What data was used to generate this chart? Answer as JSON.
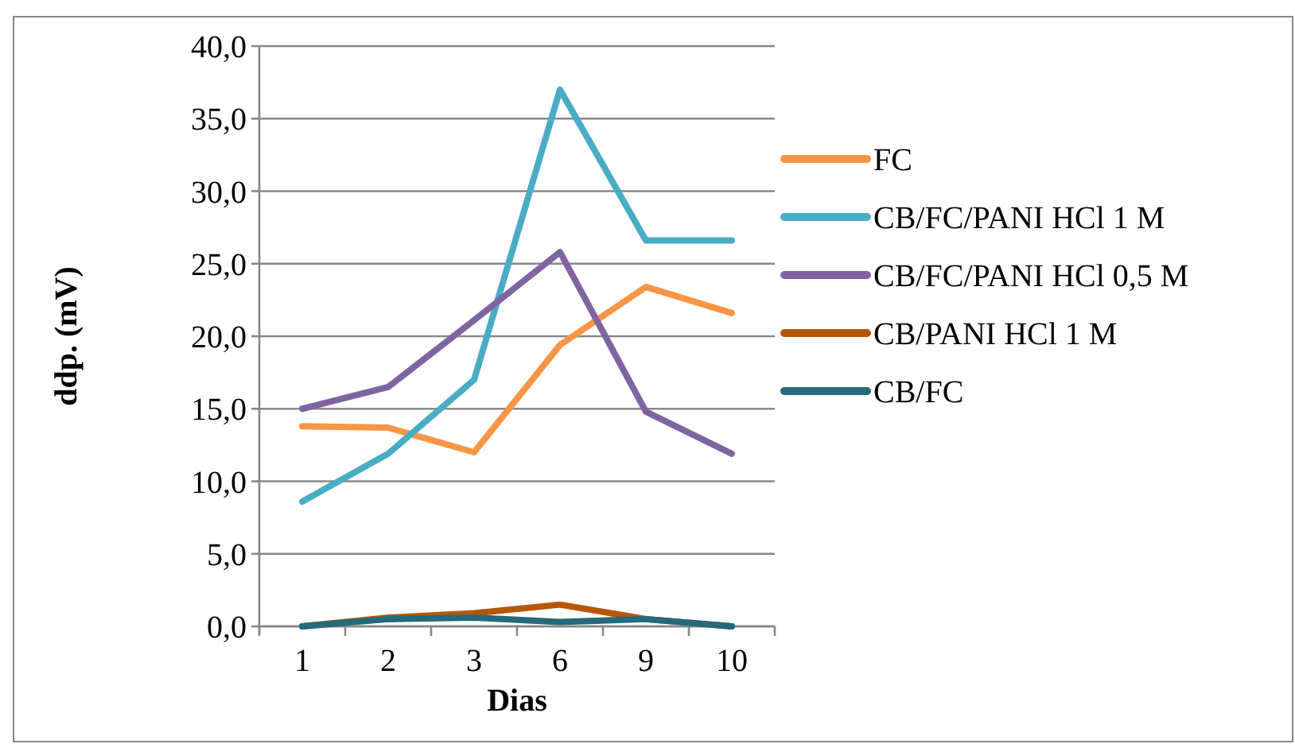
{
  "chart_data": {
    "type": "line",
    "xlabel": "Dias",
    "ylabel": "ddp. (mV)",
    "categories": [
      "1",
      "2",
      "3",
      "6",
      "9",
      "10"
    ],
    "ylim": [
      0,
      40
    ],
    "yticks": [
      {
        "value": 0,
        "label": "0,0"
      },
      {
        "value": 5,
        "label": "5,0"
      },
      {
        "value": 10,
        "label": "10,0"
      },
      {
        "value": 15,
        "label": "15,0"
      },
      {
        "value": 20,
        "label": "20,0"
      },
      {
        "value": 25,
        "label": "25,0"
      },
      {
        "value": 30,
        "label": "30,0"
      },
      {
        "value": 35,
        "label": "35,0"
      },
      {
        "value": 40,
        "label": "40,0"
      }
    ],
    "grid": "y",
    "legend": "right",
    "marker": "none",
    "line_style": "solid",
    "series": [
      {
        "name": "FC",
        "color": "#f79646",
        "values": [
          13.8,
          13.7,
          12.0,
          19.4,
          23.4,
          21.6
        ]
      },
      {
        "name": "CB/FC/PANI HCl 1 M",
        "color": "#4bacc6",
        "values": [
          8.6,
          11.9,
          17.0,
          37.0,
          26.6,
          26.6
        ]
      },
      {
        "name": "CB/FC/PANI HCl 0,5 M",
        "color": "#8064a2",
        "values": [
          15.0,
          16.5,
          21.1,
          25.8,
          14.8,
          11.9
        ]
      },
      {
        "name": "CB/PANI HCl 1 M",
        "color": "#b65708",
        "values": [
          0,
          0.6,
          0.9,
          1.5,
          0.5,
          0
        ]
      },
      {
        "name": "CB/FC",
        "color": "#246a7a",
        "values": [
          0,
          0.5,
          0.6,
          0.3,
          0.5,
          0
        ]
      }
    ]
  }
}
